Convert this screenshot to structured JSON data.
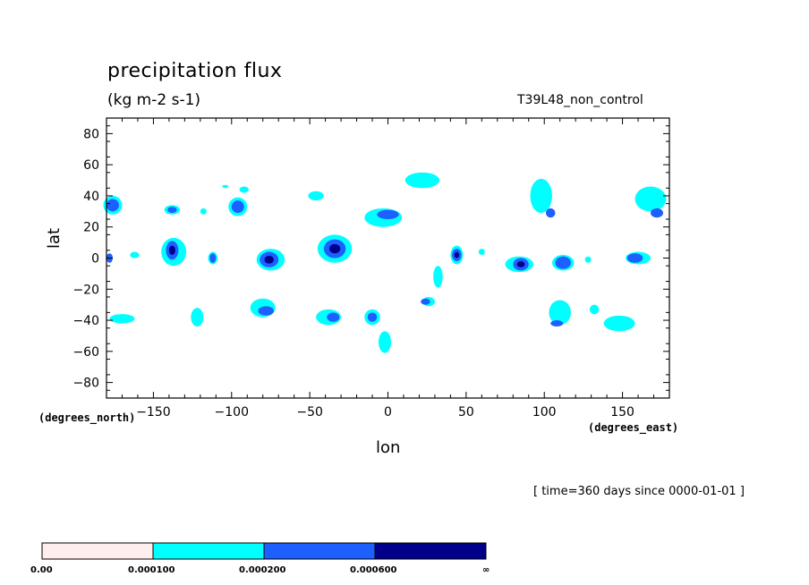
{
  "chart_data": {
    "type": "contour",
    "title": "precipitation flux",
    "units": "(kg m-2 s-1)",
    "run_label": "T39L48_non_control",
    "xlabel": "lon",
    "ylabel": "lat",
    "x_units": "(degrees_east)",
    "y_units": "(degrees_north)",
    "xlim": [
      -180,
      180
    ],
    "ylim": [
      -90,
      90
    ],
    "x_ticks": [
      -150,
      -100,
      -50,
      0,
      50,
      100,
      150
    ],
    "x_tick_labels": [
      "-150",
      "-100",
      "-50",
      "0",
      "50",
      "100",
      "150"
    ],
    "y_ticks": [
      -80,
      -60,
      -40,
      -20,
      0,
      20,
      40,
      60,
      80
    ],
    "y_tick_labels": [
      "-80",
      "-60",
      "-40",
      "-20",
      "0",
      "20",
      "40",
      "60",
      "80"
    ],
    "time_note": "[ time=360 days since 0000-01-01 ]",
    "levels": [
      {
        "label": "0.00",
        "color": "#ffeeee"
      },
      {
        "label": "0.000100",
        "color": "#00ffff"
      },
      {
        "label": "0.000200",
        "color": "#1e5fff"
      },
      {
        "label": "0.000600",
        "color": "#00008b"
      }
    ],
    "colorbar_end_label": "∞",
    "regions": [
      {
        "lon": -176,
        "lat": 34,
        "rx": 4,
        "ry": 4,
        "level": 2
      },
      {
        "lon": -138,
        "lat": 5,
        "rx": 4,
        "ry": 6,
        "level": 3
      },
      {
        "lon": -138,
        "lat": 31,
        "rx": 3,
        "ry": 2,
        "level": 2
      },
      {
        "lon": -112,
        "lat": 0,
        "rx": 2,
        "ry": 3,
        "level": 2
      },
      {
        "lon": -96,
        "lat": 33,
        "rx": 4,
        "ry": 4,
        "level": 2
      },
      {
        "lon": -76,
        "lat": -1,
        "rx": 6,
        "ry": 5,
        "level": 3
      },
      {
        "lon": -78,
        "lat": -34,
        "rx": 5,
        "ry": 3,
        "level": 2
      },
      {
        "lon": -34,
        "lat": 6,
        "rx": 7,
        "ry": 6,
        "level": 3
      },
      {
        "lon": -35,
        "lat": -38,
        "rx": 4,
        "ry": 3,
        "level": 2
      },
      {
        "lon": -10,
        "lat": -38,
        "rx": 3,
        "ry": 3,
        "level": 2
      },
      {
        "lon": 0,
        "lat": 28,
        "rx": 7,
        "ry": 3,
        "level": 2
      },
      {
        "lon": 24,
        "lat": -28,
        "rx": 3,
        "ry": 2,
        "level": 2
      },
      {
        "lon": 44,
        "lat": 2,
        "rx": 3,
        "ry": 4,
        "level": 3
      },
      {
        "lon": 85,
        "lat": -4,
        "rx": 5,
        "ry": 4,
        "level": 3
      },
      {
        "lon": 104,
        "lat": 29,
        "rx": 3,
        "ry": 3,
        "level": 2
      },
      {
        "lon": 112,
        "lat": -3,
        "rx": 5,
        "ry": 4,
        "level": 2
      },
      {
        "lon": 108,
        "lat": -42,
        "rx": 4,
        "ry": 2,
        "level": 2
      },
      {
        "lon": 158,
        "lat": 0,
        "rx": 5,
        "ry": 3,
        "level": 2
      },
      {
        "lon": 172,
        "lat": 29,
        "rx": 4,
        "ry": 3,
        "level": 2
      },
      {
        "lon": -178,
        "lat": 0,
        "rx": 2,
        "ry": 3,
        "level": 2
      }
    ],
    "light_regions": [
      {
        "lon": -176,
        "lat": 34,
        "rx": 6,
        "ry": 6
      },
      {
        "lon": -170,
        "lat": -39,
        "rx": 8,
        "ry": 3
      },
      {
        "lon": -137,
        "lat": 4,
        "rx": 8,
        "ry": 9
      },
      {
        "lon": -138,
        "lat": 31,
        "rx": 5,
        "ry": 3
      },
      {
        "lon": -122,
        "lat": -38,
        "rx": 4,
        "ry": 6
      },
      {
        "lon": -112,
        "lat": 0,
        "rx": 3,
        "ry": 4
      },
      {
        "lon": -96,
        "lat": 33,
        "rx": 6,
        "ry": 6
      },
      {
        "lon": -92,
        "lat": 44,
        "rx": 3,
        "ry": 2
      },
      {
        "lon": -75,
        "lat": -1,
        "rx": 9,
        "ry": 7
      },
      {
        "lon": -80,
        "lat": -32,
        "rx": 8,
        "ry": 6
      },
      {
        "lon": -34,
        "lat": 6,
        "rx": 11,
        "ry": 9
      },
      {
        "lon": -46,
        "lat": 40,
        "rx": 5,
        "ry": 3
      },
      {
        "lon": -38,
        "lat": -38,
        "rx": 8,
        "ry": 5
      },
      {
        "lon": -10,
        "lat": -38,
        "rx": 5,
        "ry": 5
      },
      {
        "lon": -3,
        "lat": 26,
        "rx": 12,
        "ry": 6
      },
      {
        "lon": -2,
        "lat": -54,
        "rx": 4,
        "ry": 7
      },
      {
        "lon": 22,
        "lat": 50,
        "rx": 11,
        "ry": 5
      },
      {
        "lon": 26,
        "lat": -28,
        "rx": 4,
        "ry": 3
      },
      {
        "lon": 32,
        "lat": -12,
        "rx": 3,
        "ry": 7
      },
      {
        "lon": 44,
        "lat": 2,
        "rx": 4,
        "ry": 6
      },
      {
        "lon": 84,
        "lat": -4,
        "rx": 9,
        "ry": 5
      },
      {
        "lon": 98,
        "lat": 40,
        "rx": 7,
        "ry": 11
      },
      {
        "lon": 112,
        "lat": -3,
        "rx": 7,
        "ry": 5
      },
      {
        "lon": 110,
        "lat": -35,
        "rx": 7,
        "ry": 8
      },
      {
        "lon": 148,
        "lat": -42,
        "rx": 10,
        "ry": 5
      },
      {
        "lon": 132,
        "lat": -33,
        "rx": 3,
        "ry": 3
      },
      {
        "lon": 160,
        "lat": 0,
        "rx": 8,
        "ry": 4
      },
      {
        "lon": 168,
        "lat": 38,
        "rx": 10,
        "ry": 8
      },
      {
        "lon": -162,
        "lat": 2,
        "rx": 3,
        "ry": 2
      },
      {
        "lon": -118,
        "lat": 30,
        "rx": 2,
        "ry": 2
      },
      {
        "lon": -104,
        "lat": 46,
        "rx": 2,
        "ry": 1
      },
      {
        "lon": 60,
        "lat": 4,
        "rx": 2,
        "ry": 2
      },
      {
        "lon": 128,
        "lat": -1,
        "rx": 2,
        "ry": 2
      }
    ]
  }
}
